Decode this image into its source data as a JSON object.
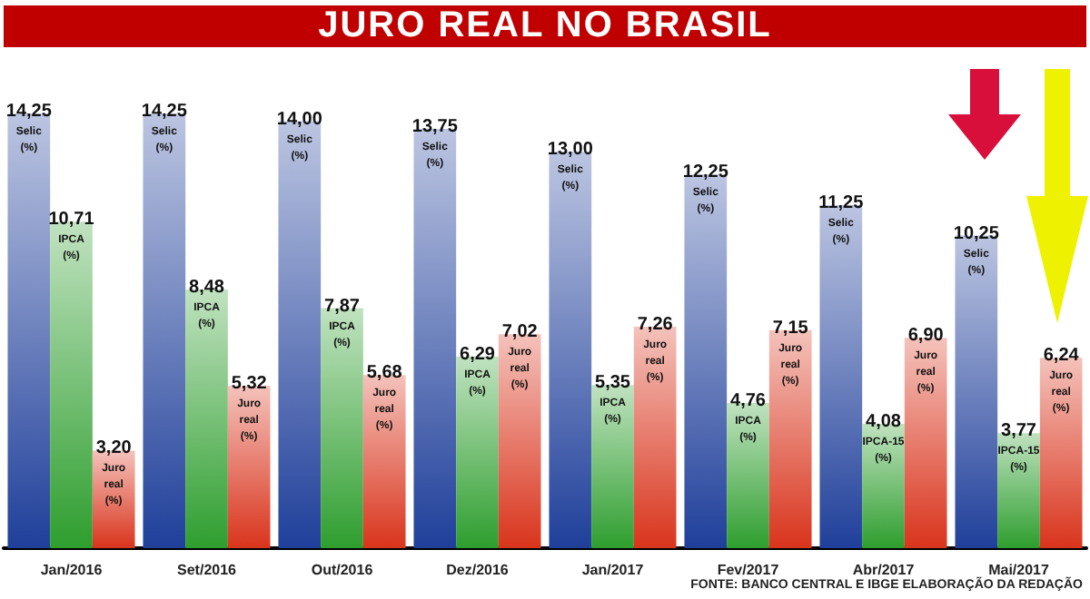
{
  "chart_data": {
    "type": "bar",
    "title": "JURO REAL NO BRASIL",
    "categories": [
      "Jan/2016",
      "Set/2016",
      "Out/2016",
      "Dez/2016",
      "Jan/2017",
      "Fev/2017",
      "Abr/2017",
      "Mai/2017"
    ],
    "series": [
      {
        "color": "#1f3f9a",
        "values": [
          14.25,
          14.25,
          14.0,
          13.75,
          13.0,
          12.25,
          11.25,
          10.25
        ],
        "value_labels": [
          "14,25 Selic (%)",
          "14,25 Selic (%)",
          "14,00 Selic (%)",
          "13,75 Selic (%)",
          "13,00 Selic (%)",
          "12,25 Selic (%)",
          "11,25 Selic (%)",
          "10,25 Selic (%)"
        ]
      },
      {
        "color": "#2e9e2e",
        "values": [
          10.71,
          8.48,
          7.87,
          6.29,
          5.35,
          4.76,
          4.08,
          3.77
        ],
        "value_labels": [
          "10,71 IPCA (%)",
          "8,48 IPCA (%)",
          "7,87 IPCA (%)",
          "6,29 IPCA (%)",
          "5,35 IPCA (%)",
          "4,76 IPCA (%)",
          "4,08 IPCA-15 (%)",
          "3,77 IPCA-15 (%)"
        ]
      },
      {
        "color": "#d9341c",
        "values": [
          3.2,
          5.32,
          5.68,
          7.02,
          7.26,
          7.15,
          6.9,
          6.24
        ],
        "value_labels": [
          "3,20 Juro real (%)",
          "5,32 Juro real (%)",
          "5,68 Juro real (%)",
          "7,02 Juro real (%)",
          "7,26 Juro real (%)",
          "7,15 Juro real (%)",
          "6,90 Juro real (%)",
          "6,24 Juro real (%)"
        ]
      }
    ],
    "annotations": [
      "FONTE: BANCO CENTRAL E IBGE ELABORAÇÃO DA REDAÇÃO"
    ]
  }
}
